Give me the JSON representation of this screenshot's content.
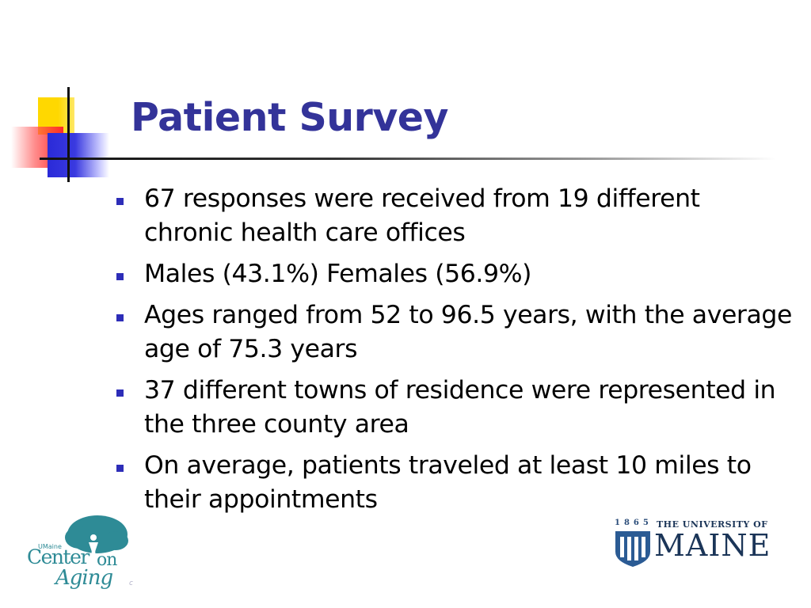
{
  "slide": {
    "title": "Patient Survey",
    "bullets": [
      {
        "text": "67 responses were received from 19 different chronic health care offices"
      },
      {
        "text": "Males (43.1%) Females (56.9%)"
      },
      {
        "text": "Ages ranged from 52 to 96.5 years, with the average age of 75.3 years"
      },
      {
        "text": "37 different towns of residence were represented in the three county area"
      },
      {
        "text": "On average, patients traveled at least 10 miles to their appointments"
      }
    ]
  },
  "logos": {
    "center_on_aging": {
      "small_text": "UMaine",
      "line1": "Center",
      "line1b": "on",
      "line2": "Aging",
      "corner_mark": "c"
    },
    "university_of_maine": {
      "year": "1865",
      "line1": "THE UNIVERSITY OF",
      "line2": "MAINE"
    }
  },
  "colors": {
    "title": "#333399",
    "bullet_marker": "#2d2db8",
    "accent_yellow": "#ffd800",
    "accent_red": "#ff2b2b",
    "accent_blue": "#2a2ad8",
    "coa_teal": "#2e8b96",
    "umaine_navy": "#1b3558"
  }
}
